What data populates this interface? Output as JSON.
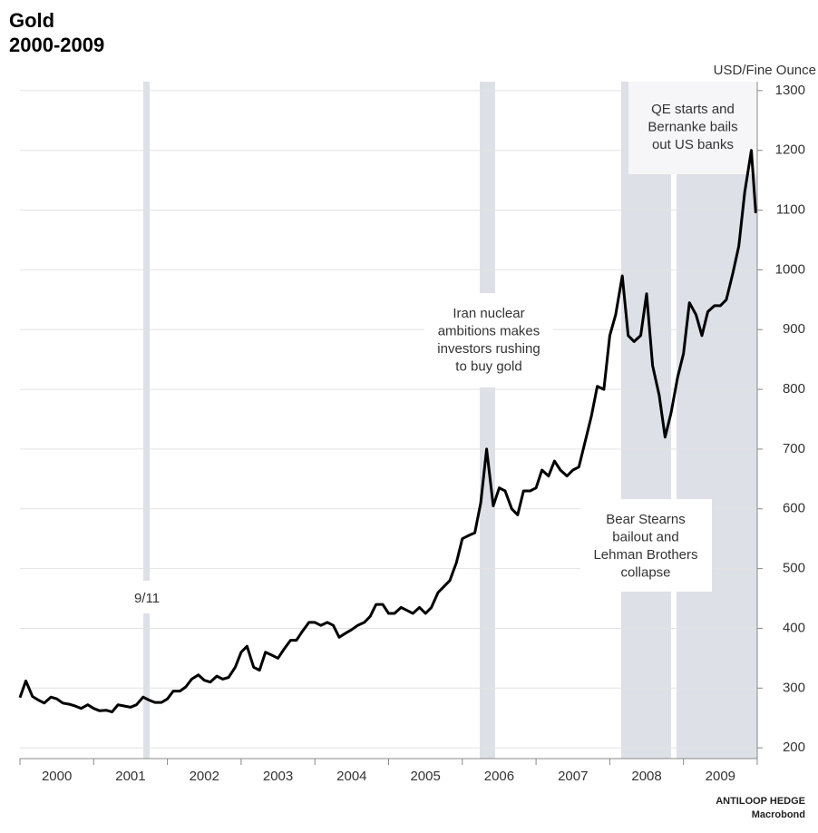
{
  "chart_data": {
    "type": "line",
    "title": "Gold",
    "subtitle": "2000-2009",
    "y_label": "USD/Fine Ounce",
    "source": "ANTILOOP HEDGE",
    "source_sub": "Macrobond",
    "annotations": [
      "9/11",
      "Iran nuclear\nambitions makes\ninvestors rushing\nto buy gold",
      "Bear Stearns\nbailout and\nLehman Brothers\ncollapse",
      "QE starts and\nBernanke bails\nout US banks"
    ],
    "color": "#000000",
    "grid": true,
    "xlim": [
      2000,
      2010
    ],
    "ylim": [
      182,
      1315
    ],
    "yticks": [
      200,
      300,
      400,
      500,
      600,
      700,
      800,
      900,
      1000,
      1100,
      1200,
      1300
    ],
    "xticks": [
      {
        "value": 2000.5,
        "label": "2000"
      },
      {
        "value": 2001.5,
        "label": "2001"
      },
      {
        "value": 2002.5,
        "label": "2002"
      },
      {
        "value": 2003.5,
        "label": "2003"
      },
      {
        "value": 2004.5,
        "label": "2004"
      },
      {
        "value": 2005.5,
        "label": "2005"
      },
      {
        "value": 2006.5,
        "label": "2006"
      },
      {
        "value": 2007.5,
        "label": "2007"
      },
      {
        "value": 2008.5,
        "label": "2008"
      },
      {
        "value": 2009.5,
        "label": "2009"
      }
    ],
    "x": [
      2000.0,
      2000.08,
      2000.17,
      2000.25,
      2000.33,
      2000.42,
      2000.5,
      2000.58,
      2000.67,
      2000.75,
      2000.83,
      2000.92,
      2001.0,
      2001.08,
      2001.17,
      2001.25,
      2001.33,
      2001.42,
      2001.5,
      2001.58,
      2001.67,
      2001.75,
      2001.83,
      2001.92,
      2002.0,
      2002.08,
      2002.17,
      2002.25,
      2002.33,
      2002.42,
      2002.5,
      2002.58,
      2002.67,
      2002.75,
      2002.83,
      2002.92,
      2003.0,
      2003.08,
      2003.17,
      2003.25,
      2003.33,
      2003.42,
      2003.5,
      2003.58,
      2003.67,
      2003.75,
      2003.83,
      2003.92,
      2004.0,
      2004.08,
      2004.17,
      2004.25,
      2004.33,
      2004.42,
      2004.5,
      2004.58,
      2004.67,
      2004.75,
      2004.83,
      2004.92,
      2005.0,
      2005.08,
      2005.17,
      2005.25,
      2005.33,
      2005.42,
      2005.5,
      2005.58,
      2005.67,
      2005.75,
      2005.83,
      2005.92,
      2006.0,
      2006.08,
      2006.17,
      2006.25,
      2006.33,
      2006.42,
      2006.5,
      2006.58,
      2006.67,
      2006.75,
      2006.83,
      2006.92,
      2007.0,
      2007.08,
      2007.17,
      2007.25,
      2007.33,
      2007.42,
      2007.5,
      2007.58,
      2007.67,
      2007.75,
      2007.83,
      2007.92,
      2008.0,
      2008.08,
      2008.17,
      2008.25,
      2008.33,
      2008.42,
      2008.5,
      2008.58,
      2008.67,
      2008.75,
      2008.83,
      2008.92,
      2009.0,
      2009.08,
      2009.17,
      2009.25,
      2009.33,
      2009.42,
      2009.5,
      2009.58,
      2009.67,
      2009.75,
      2009.83,
      2009.92,
      2009.98
    ],
    "values": [
      284,
      312,
      286,
      280,
      275,
      285,
      282,
      275,
      273,
      270,
      266,
      272,
      266,
      262,
      263,
      260,
      272,
      270,
      268,
      272,
      285,
      280,
      276,
      276,
      282,
      295,
      295,
      302,
      315,
      322,
      313,
      310,
      320,
      315,
      318,
      335,
      360,
      370,
      335,
      330,
      360,
      355,
      350,
      365,
      380,
      380,
      395,
      410,
      410,
      405,
      410,
      405,
      385,
      392,
      398,
      405,
      410,
      420,
      440,
      440,
      425,
      425,
      435,
      430,
      425,
      435,
      425,
      435,
      460,
      470,
      480,
      510,
      550,
      555,
      560,
      610,
      700,
      605,
      635,
      630,
      600,
      590,
      630,
      630,
      635,
      665,
      655,
      680,
      665,
      655,
      665,
      670,
      715,
      755,
      805,
      800,
      890,
      925,
      990,
      890,
      880,
      890,
      960,
      840,
      790,
      720,
      760,
      820,
      860,
      945,
      925,
      890,
      930,
      940,
      940,
      950,
      995,
      1040,
      1130,
      1200,
      1095
    ]
  }
}
